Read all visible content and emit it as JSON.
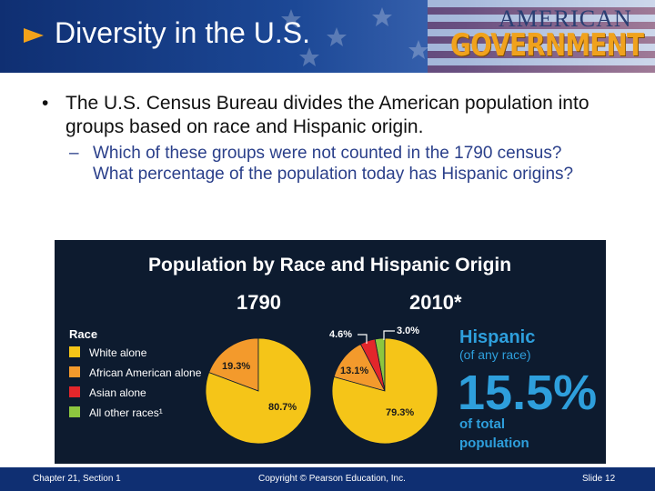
{
  "header": {
    "title": "Diversity in the U.S.",
    "logo_top": "AMERICAN",
    "logo_main": "GOVERNMENT"
  },
  "body": {
    "bullet": "The U.S. Census Bureau divides the American population into groups based on race and Hispanic origin.",
    "sub_bullet": "Which of these groups were not counted in the 1790 census? What percentage of the population today has Hispanic origins?"
  },
  "chart_data": {
    "type": "pie",
    "title": "Population by Race and Hispanic Origin",
    "legend_title": "Race",
    "legend_position": "left",
    "categories": [
      "White alone",
      "African American alone",
      "Asian alone",
      "All other races¹"
    ],
    "colors": [
      "#f5c518",
      "#f39a2c",
      "#e3262b",
      "#8dc63f"
    ],
    "series": [
      {
        "name": "1790",
        "values": [
          80.7,
          19.3,
          0,
          0
        ],
        "labels": [
          "80.7%",
          "19.3%",
          "",
          ""
        ]
      },
      {
        "name": "2010*",
        "values": [
          79.3,
          13.1,
          4.6,
          3.0
        ],
        "labels": [
          "79.3%",
          "13.1%",
          "4.6%",
          "3.0%"
        ]
      }
    ],
    "callout": {
      "line1": "Hispanic",
      "line2": "(of any race)",
      "value": "15.5%",
      "line3": "of total",
      "line4": "population",
      "color": "#2e9fdc"
    }
  },
  "footer": {
    "left": "Chapter 21, Section 1",
    "center": "Copyright © Pearson Education, Inc.",
    "right": "Slide 12"
  }
}
